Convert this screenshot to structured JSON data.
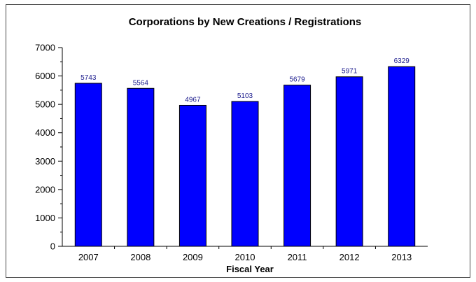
{
  "chart_data": {
    "type": "bar",
    "title": "Corporations by New Creations / Registrations",
    "xlabel": "Fiscal Year",
    "ylabel": "",
    "categories": [
      "2007",
      "2008",
      "2009",
      "2010",
      "2011",
      "2012",
      "2013"
    ],
    "values": [
      5743,
      5564,
      4967,
      5103,
      5679,
      5971,
      6329
    ],
    "data_labels": [
      "5743",
      "5564",
      "4967",
      "5103",
      "5679",
      "5971",
      "6329"
    ],
    "ylim": [
      0,
      7000
    ],
    "yticks": [
      0,
      1000,
      2000,
      3000,
      4000,
      5000,
      6000,
      7000
    ],
    "ytick_labels": [
      "0",
      "1000",
      "2000",
      "3000",
      "4000",
      "5000",
      "6000",
      "7000"
    ],
    "y_minor_step": 500,
    "grid": false,
    "legend": "none",
    "colors": {
      "bar_fill": "#0000ff",
      "bar_stroke": "#000000",
      "data_label": "#1a1a8c",
      "axis": "#000000"
    }
  }
}
